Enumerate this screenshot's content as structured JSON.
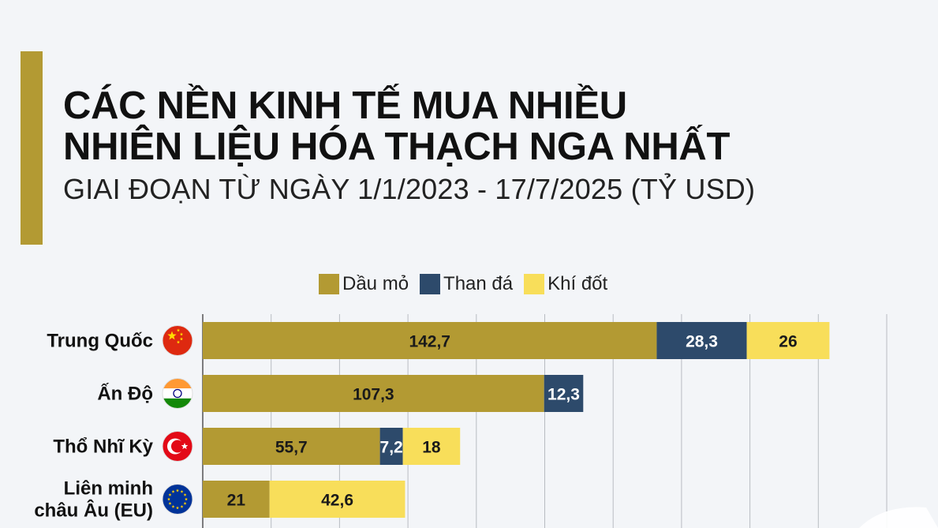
{
  "colors": {
    "accent": "#b39a33",
    "oil": "#b39a33",
    "coal": "#2d4a6b",
    "gas": "#f8de5a",
    "grid": "#b8bcc2"
  },
  "title_lines": [
    "CÁC NỀN KINH TẾ MUA NHIỀU",
    "NHIÊN LIỆU HÓA THẠCH NGA NHẤT"
  ],
  "subtitle": "GIAI ĐOẠN TỪ NGÀY 1/1/2023 - 17/7/2025 (TỶ USD)",
  "chart_data": {
    "type": "bar",
    "orientation": "horizontal",
    "stacked": true,
    "title": "CÁC NỀN KINH TẾ MUA NHIỀU NHIÊN LIỆU HÓA THẠCH NGA NHẤT",
    "subtitle": "GIAI ĐOẠN TỪ NGÀY 1/1/2023 - 17/7/2025 (TỶ USD)",
    "legend_position": "top",
    "grid": true,
    "xlim": [
      0,
      215
    ],
    "grid_step": 21.5,
    "categories": [
      {
        "label_lines": [
          "Trung Quốc"
        ],
        "flag": "china-flag-icon"
      },
      {
        "label_lines": [
          "Ấn Độ"
        ],
        "flag": "india-flag-icon"
      },
      {
        "label_lines": [
          "Thổ Nhĩ Kỳ"
        ],
        "flag": "turkey-flag-icon"
      },
      {
        "label_lines": [
          "Liên minh",
          "châu Âu (EU)"
        ],
        "flag": "eu-flag-icon"
      }
    ],
    "series": [
      {
        "name": "Dầu mỏ",
        "color": "#b39a33",
        "values": [
          142.7,
          107.3,
          55.7,
          21
        ],
        "labels": [
          "142,7",
          "107,3",
          "55,7",
          "21"
        ]
      },
      {
        "name": "Than đá",
        "color": "#2d4a6b",
        "values": [
          28.3,
          12.3,
          7.2,
          0
        ],
        "labels": [
          "28,3",
          "12,3",
          "7,2",
          ""
        ]
      },
      {
        "name": "Khí đốt",
        "color": "#f8de5a",
        "values": [
          26,
          0,
          18,
          42.6
        ],
        "labels": [
          "26",
          "",
          "18",
          "42,6"
        ]
      }
    ]
  }
}
